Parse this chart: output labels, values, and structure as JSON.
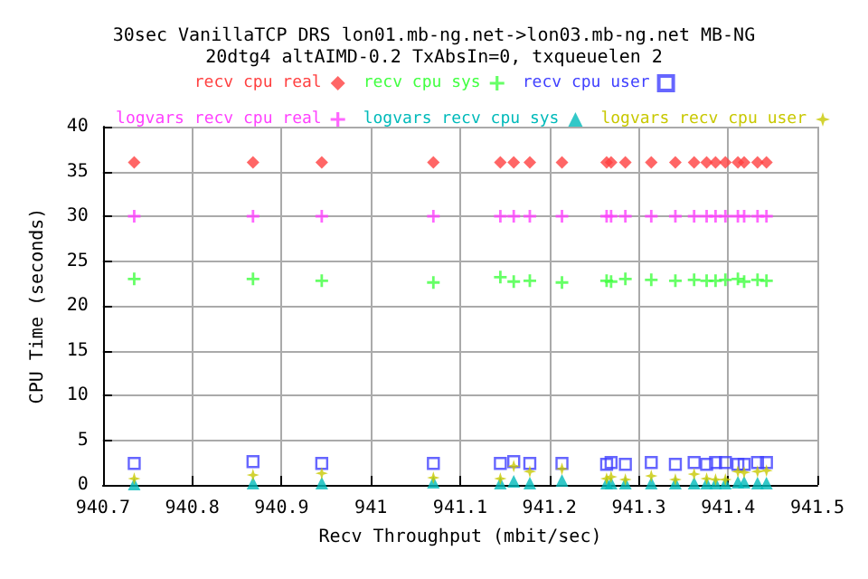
{
  "chart_data": {
    "type": "scatter",
    "title": "30sec VanillaTCP DRS lon01.mb-ng.net->lon03.mb-ng.net MB-NG",
    "subtitle": "20dtg4 altAIMD-0.2 TxAbsIn=0, txqueuelen 2",
    "xlabel": "Recv Throughput (mbit/sec)",
    "ylabel": "CPU Time (seconds)",
    "x": [
      940.735,
      940.868,
      940.945,
      941.07,
      941.145,
      941.16,
      941.178,
      941.214,
      941.264,
      941.269,
      941.285,
      941.314,
      941.341,
      941.362,
      941.376,
      941.386,
      941.397,
      941.411,
      941.418,
      941.433,
      941.443
    ],
    "series": [
      {
        "name": "recv cpu real",
        "color": "#ff4040",
        "marker": "diamond",
        "values": [
          36,
          36,
          36,
          36,
          36,
          36,
          36,
          36,
          36,
          36,
          36,
          36,
          36,
          36,
          36,
          36,
          36,
          36,
          36,
          36,
          36
        ]
      },
      {
        "name": "recv cpu sys",
        "color": "#40ff40",
        "marker": "cross",
        "values": [
          23,
          23,
          22.8,
          22.6,
          23.2,
          22.7,
          22.8,
          22.6,
          22.8,
          22.7,
          23,
          22.9,
          22.8,
          22.9,
          22.8,
          22.8,
          22.9,
          23,
          22.7,
          22.9,
          22.8
        ]
      },
      {
        "name": "recv cpu user",
        "color": "#4040ff",
        "marker": "square",
        "values": [
          2.4,
          2.6,
          2.4,
          2.4,
          2.4,
          2.6,
          2.4,
          2.4,
          2.3,
          2.5,
          2.3,
          2.5,
          2.3,
          2.5,
          2.3,
          2.5,
          2.5,
          2.3,
          2.3,
          2.5,
          2.5
        ]
      },
      {
        "name": "logvars recv cpu real",
        "color": "#ff40ff",
        "marker": "cross",
        "values": [
          30,
          30,
          30,
          30,
          30,
          30,
          30,
          30,
          30,
          30,
          30,
          30,
          30,
          30,
          30,
          30,
          30,
          30,
          30,
          30,
          30
        ]
      },
      {
        "name": "logvars recv cpu sys",
        "color": "#00baba",
        "marker": "triangle",
        "values": [
          0.1,
          0.2,
          0.2,
          0.3,
          0.2,
          0.4,
          0.2,
          0.5,
          0.2,
          0.2,
          0.2,
          0.2,
          0.2,
          0.2,
          0.2,
          0.2,
          0.2,
          0.3,
          0.3,
          0.2,
          0.2
        ]
      },
      {
        "name": "logvars recv cpu user",
        "color": "#c8c800",
        "marker": "star",
        "values": [
          0.7,
          1.1,
          1.3,
          0.8,
          0.7,
          2.1,
          1.5,
          1.8,
          0.7,
          0.9,
          0.6,
          1,
          0.6,
          1.2,
          0.7,
          0.6,
          0.6,
          1.5,
          1.4,
          1.5,
          1.6
        ]
      }
    ],
    "xlim": [
      940.7,
      941.5
    ],
    "xticks": [
      940.7,
      940.8,
      940.9,
      941,
      941.1,
      941.2,
      941.3,
      941.4,
      941.5
    ],
    "ylim": [
      0,
      40
    ],
    "yticks": [
      0,
      5,
      10,
      15,
      20,
      25,
      30,
      35,
      40
    ],
    "grid": true,
    "legend": "top right"
  }
}
